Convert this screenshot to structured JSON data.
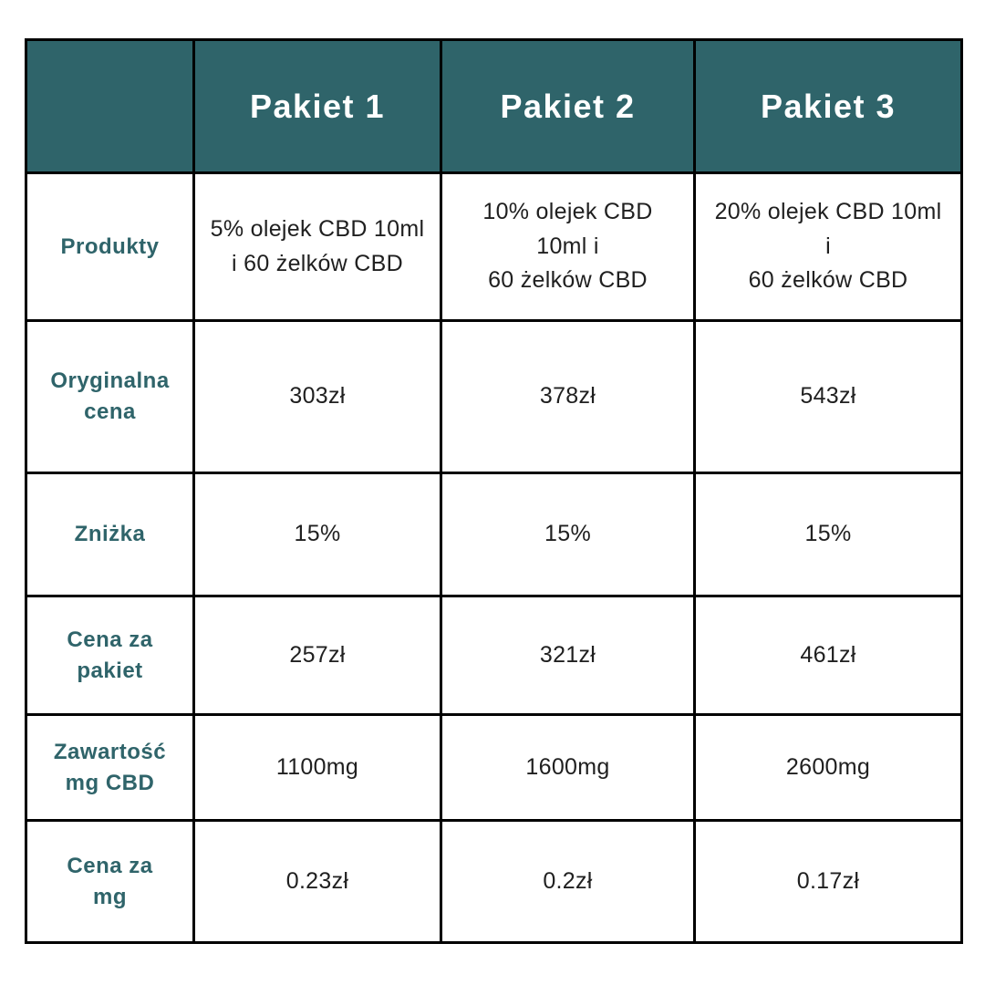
{
  "colors": {
    "background": "#ffffff",
    "header_bg": "#2f646a",
    "header_text": "#ffffff",
    "label_text": "#2f646a",
    "body_text": "#202020",
    "border": "#000000"
  },
  "table": {
    "header": {
      "corner": "",
      "columns": [
        "Pakiet 1",
        "Pakiet 2",
        "Pakiet 3"
      ]
    },
    "rows": [
      {
        "label": "Produkty",
        "values": [
          "5% olejek CBD 10ml\ni 60 żelków CBD",
          "10% olejek CBD 10ml i\n60 żelków CBD",
          "20% olejek CBD 10ml i\n60 żelków CBD"
        ]
      },
      {
        "label": "Oryginalna\ncena",
        "values": [
          "303zł",
          "378zł",
          "543zł"
        ]
      },
      {
        "label": "Zniżka",
        "values": [
          "15%",
          "15%",
          "15%"
        ]
      },
      {
        "label": "Cena za\npakiet",
        "values": [
          "257zł",
          "321zł",
          "461zł"
        ]
      },
      {
        "label": "Zawartość\nmg CBD",
        "values": [
          "1100mg",
          "1600mg",
          "2600mg"
        ]
      },
      {
        "label": "Cena za\nmg",
        "values": [
          "0.23zł",
          "0.2zł",
          "0.17zł"
        ]
      }
    ]
  },
  "chart_data": {
    "type": "table",
    "title": "",
    "columns": [
      "",
      "Pakiet 1",
      "Pakiet 2",
      "Pakiet 3"
    ],
    "rows": [
      [
        "Produkty",
        "5% olejek CBD 10ml i 60 żelków CBD",
        "10% olejek CBD 10ml i 60 żelków CBD",
        "20% olejek CBD 10ml i 60 żelków CBD"
      ],
      [
        "Oryginalna cena",
        "303zł",
        "378zł",
        "543zł"
      ],
      [
        "Zniżka",
        "15%",
        "15%",
        "15%"
      ],
      [
        "Cena za pakiet",
        "257zł",
        "321zł",
        "461zł"
      ],
      [
        "Zawartość mg CBD",
        "1100mg",
        "1600mg",
        "2600mg"
      ],
      [
        "Cena za mg",
        "0.23zł",
        "0.2zł",
        "0.17zł"
      ]
    ]
  }
}
